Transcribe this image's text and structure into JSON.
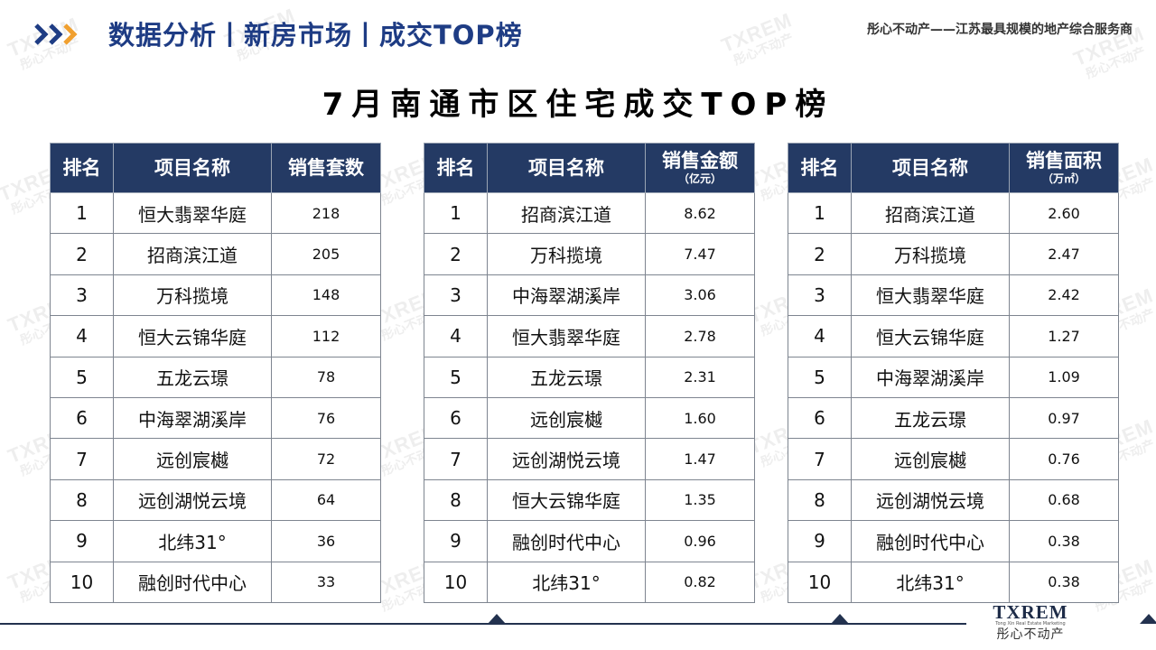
{
  "header": {
    "title": "数据分析丨新房市场丨成交TOP榜",
    "slogan": "彤心不动产——江苏最具规模的地产综合服务商"
  },
  "main_title": "7月南通市区住宅成交TOP榜",
  "tables": [
    {
      "headers": [
        "排名",
        "项目名称",
        "销售套数"
      ],
      "sub": "",
      "rows": [
        [
          "1",
          "恒大翡翠华庭",
          "218"
        ],
        [
          "2",
          "招商滨江道",
          "205"
        ],
        [
          "3",
          "万科揽境",
          "148"
        ],
        [
          "4",
          "恒大云锦华庭",
          "112"
        ],
        [
          "5",
          "五龙云璟",
          "78"
        ],
        [
          "6",
          "中海翠湖溪岸",
          "76"
        ],
        [
          "7",
          "远创宸樾",
          "72"
        ],
        [
          "8",
          "远创湖悦云境",
          "64"
        ],
        [
          "9",
          "北纬31°",
          "36"
        ],
        [
          "10",
          "融创时代中心",
          "33"
        ]
      ]
    },
    {
      "headers": [
        "排名",
        "项目名称",
        "销售金额"
      ],
      "sub": "（亿元）",
      "rows": [
        [
          "1",
          "招商滨江道",
          "8.62"
        ],
        [
          "2",
          "万科揽境",
          "7.47"
        ],
        [
          "3",
          "中海翠湖溪岸",
          "3.06"
        ],
        [
          "4",
          "恒大翡翠华庭",
          "2.78"
        ],
        [
          "5",
          "五龙云璟",
          "2.31"
        ],
        [
          "6",
          "远创宸樾",
          "1.60"
        ],
        [
          "7",
          "远创湖悦云境",
          "1.47"
        ],
        [
          "8",
          "恒大云锦华庭",
          "1.35"
        ],
        [
          "9",
          "融创时代中心",
          "0.96"
        ],
        [
          "10",
          "北纬31°",
          "0.82"
        ]
      ]
    },
    {
      "headers": [
        "排名",
        "项目名称",
        "销售面积"
      ],
      "sub": "（万㎡）",
      "rows": [
        [
          "1",
          "招商滨江道",
          "2.60"
        ],
        [
          "2",
          "万科揽境",
          "2.47"
        ],
        [
          "3",
          "恒大翡翠华庭",
          "2.42"
        ],
        [
          "4",
          "恒大云锦华庭",
          "1.27"
        ],
        [
          "5",
          "中海翠湖溪岸",
          "1.09"
        ],
        [
          "6",
          "五龙云璟",
          "0.97"
        ],
        [
          "7",
          "远创宸樾",
          "0.76"
        ],
        [
          "8",
          "远创湖悦云境",
          "0.68"
        ],
        [
          "9",
          "融创时代中心",
          "0.38"
        ],
        [
          "10",
          "北纬31°",
          "0.38"
        ]
      ]
    }
  ],
  "logo": {
    "main": "TXREM",
    "sub": "Tong Xin Real Estate Marketing",
    "cn": "彤心不动产"
  },
  "watermark": {
    "a": "TXREM",
    "b": "彤心不动产"
  },
  "colors": {
    "header_title": "#1e3c84",
    "table_header_bg": "#243a64",
    "chevron_blue": "#1e3c84",
    "chevron_orange": "#f0a030"
  }
}
